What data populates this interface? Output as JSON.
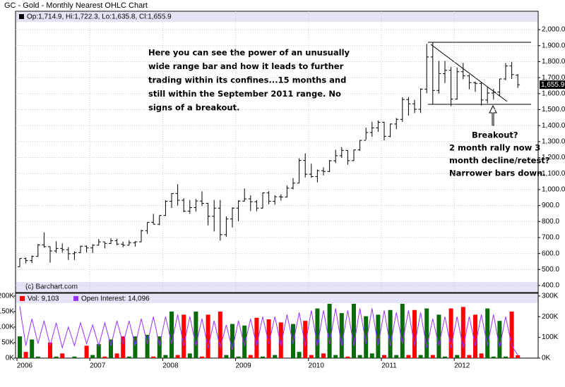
{
  "chart_data": {
    "type": "ohlc",
    "title": "GC - Gold - Monthly Nearest OHLC Chart",
    "legend": "Op:1,714.9, Hi:1,722.3, Lo:1,635.8, Cl:1,655.9",
    "last_label": "1,655.9",
    "copyright": "(c) Barchart.com",
    "annotations": [
      [
        "Here you can see the power of an unusually",
        "wide range bar and how it leads to further",
        "trading within its confines...15 months and",
        "still within the September 2011 range. No",
        "signs of a breakout."
      ],
      [
        "Breakout?",
        "2 month rally now 3",
        "month decline/retest?",
        "Narrower bars down."
      ]
    ],
    "categories": [
      "2006",
      null,
      null,
      null,
      null,
      null,
      null,
      null,
      null,
      null,
      null,
      null,
      "2007",
      null,
      null,
      null,
      null,
      null,
      null,
      null,
      null,
      null,
      null,
      null,
      "2008",
      null,
      null,
      null,
      null,
      null,
      null,
      null,
      null,
      null,
      null,
      null,
      "2009",
      null,
      null,
      null,
      null,
      null,
      null,
      null,
      null,
      null,
      null,
      null,
      "2010",
      null,
      null,
      null,
      null,
      null,
      null,
      null,
      null,
      null,
      null,
      null,
      "2011",
      null,
      null,
      null,
      null,
      null,
      null,
      null,
      null,
      null,
      null,
      null,
      "2012",
      null,
      null,
      null,
      null,
      null,
      null,
      null,
      null,
      null,
      null
    ],
    "open": [
      517,
      569,
      556,
      582,
      654,
      643,
      616,
      632,
      624,
      599,
      606,
      646,
      635,
      652,
      673,
      663,
      680,
      659,
      652,
      668,
      673,
      743,
      795,
      783,
      838,
      927,
      975,
      933,
      865,
      887,
      928,
      914,
      833,
      884,
      718,
      816,
      884,
      928,
      942,
      924,
      884,
      979,
      927,
      955,
      953,
      1009,
      1040,
      1182,
      1096,
      1081,
      1118,
      1113,
      1180,
      1212,
      1245,
      1181,
      1248,
      1308,
      1357,
      1386,
      1421,
      1333,
      1410,
      1439,
      1563,
      1536,
      1502,
      1628,
      1829,
      1620,
      1725,
      1746,
      1566,
      1737,
      1711,
      1669,
      1664,
      1560,
      1604,
      1610,
      1692,
      1773,
      1714.9
    ],
    "high": [
      571,
      575,
      588,
      660,
      732,
      645,
      677,
      663,
      640,
      614,
      649,
      650,
      658,
      691,
      673,
      696,
      693,
      674,
      683,
      677,
      749,
      795,
      848,
      839,
      933,
      977,
      1033,
      945,
      935,
      941,
      989,
      917,
      935,
      935,
      832,
      889,
      933,
      1007,
      964,
      934,
      982,
      990,
      964,
      970,
      1025,
      1072,
      1195,
      1227,
      1162,
      1125,
      1139,
      1185,
      1249,
      1265,
      1245,
      1250,
      1310,
      1388,
      1424,
      1432,
      1424,
      1413,
      1448,
      1577,
      1578,
      1561,
      1633,
      1911,
      1923,
      1804,
      1805,
      1766,
      1764,
      1792,
      1720,
      1676,
      1668,
      1640,
      1630,
      1693,
      1791,
      1798,
      1722.3
    ],
    "low": [
      517,
      538,
      540,
      580,
      637,
      543,
      604,
      606,
      560,
      560,
      602,
      606,
      603,
      650,
      632,
      660,
      652,
      640,
      650,
      643,
      671,
      723,
      784,
      777,
      835,
      885,
      900,
      858,
      849,
      862,
      897,
      776,
      738,
      681,
      705,
      763,
      802,
      925,
      866,
      865,
      881,
      908,
      905,
      931,
      950,
      1002,
      1040,
      1076,
      1074,
      1045,
      1089,
      1111,
      1166,
      1198,
      1155,
      1178,
      1242,
      1312,
      1330,
      1361,
      1308,
      1327,
      1378,
      1424,
      1462,
      1478,
      1479,
      1602,
      1535,
      1600,
      1666,
      1522,
      1562,
      1690,
      1627,
      1611,
      1526,
      1540,
      1562,
      1586,
      1684,
      1692,
      1635.8
    ],
    "close": [
      569,
      556,
      582,
      654,
      643,
      616,
      632,
      624,
      599,
      606,
      646,
      635,
      652,
      673,
      663,
      680,
      659,
      652,
      668,
      673,
      743,
      795,
      783,
      838,
      927,
      975,
      933,
      865,
      887,
      928,
      914,
      833,
      884,
      718,
      816,
      884,
      928,
      942,
      924,
      884,
      979,
      927,
      955,
      953,
      1009,
      1040,
      1182,
      1096,
      1081,
      1118,
      1113,
      1180,
      1212,
      1245,
      1181,
      1248,
      1308,
      1357,
      1386,
      1421,
      1333,
      1410,
      1439,
      1563,
      1536,
      1502,
      1628,
      1829,
      1620,
      1725,
      1746,
      1566,
      1737,
      1711,
      1669,
      1664,
      1560,
      1604,
      1610,
      1692,
      1773,
      1719,
      1655.9
    ],
    "color": "#000000",
    "ylim": [
      356,
      2115
    ],
    "yticks": [
      {
        "value": 400,
        "label": "400.0"
      },
      {
        "value": 500,
        "label": "500.0"
      },
      {
        "value": 600,
        "label": "600.0"
      },
      {
        "value": 700,
        "label": "700.0"
      },
      {
        "value": 800,
        "label": "800.0"
      },
      {
        "value": 900,
        "label": "900.0"
      },
      {
        "value": 1000,
        "label": "1,000.0"
      },
      {
        "value": 1100,
        "label": "1,100.0"
      },
      {
        "value": 1200,
        "label": "1,200.0"
      },
      {
        "value": 1300,
        "label": "1,300.0"
      },
      {
        "value": 1400,
        "label": "1,400.0"
      },
      {
        "value": 1500,
        "label": "1,500.0"
      },
      {
        "value": 1600,
        "label": "1,600.0"
      },
      {
        "value": 1700,
        "label": "1,700.0"
      },
      {
        "value": 1800,
        "label": "1,800.0"
      },
      {
        "value": 1900,
        "label": "1,900.0"
      },
      {
        "value": 2000,
        "label": "2,000.0"
      }
    ],
    "grid": true,
    "volume": {
      "type": "bar",
      "up_color": "#0a6b0a",
      "down_color": "#ff0000",
      "series": [
        {
          "name": "Vol: 9,103",
          "color": "#ff0000",
          "values": [
            70000,
            20000,
            60000,
            5000,
            0,
            50000,
            5000,
            15000,
            0,
            5000,
            0,
            40000,
            10000,
            45000,
            5000,
            60000,
            15000,
            70000,
            5000,
            70000,
            0,
            75000,
            5000,
            70000,
            10000,
            150000,
            10000,
            140000,
            15000,
            150000,
            5000,
            140000,
            0,
            150000,
            10000,
            110000,
            5000,
            105000,
            10000,
            130000,
            5000,
            125000,
            10000,
            115000,
            0,
            110000,
            20000,
            120000,
            10000,
            160000,
            15000,
            175000,
            10000,
            145000,
            5000,
            175000,
            10000,
            135000,
            15000,
            140000,
            10000,
            155000,
            10000,
            175000,
            10000,
            155000,
            10000,
            160000,
            10000,
            140000,
            5000,
            160000,
            10000,
            165000,
            10000,
            140000,
            15000,
            160000,
            5000,
            120000,
            5000,
            150000,
            9103
          ]
        },
        {
          "name": "Open Interest: 14,096",
          "color": "#9933ff",
          "axis": "y2",
          "values": [
            250000,
            60000,
            190000,
            70000,
            180000,
            60000,
            170000,
            50000,
            150000,
            60000,
            170000,
            70000,
            160000,
            60000,
            170000,
            60000,
            180000,
            70000,
            180000,
            60000,
            190000,
            70000,
            200000,
            60000,
            200000,
            70000,
            210000,
            60000,
            200000,
            60000,
            190000,
            50000,
            180000,
            50000,
            160000,
            40000,
            180000,
            60000,
            190000,
            60000,
            200000,
            70000,
            200000,
            60000,
            210000,
            70000,
            220000,
            60000,
            230000,
            60000,
            230000,
            70000,
            240000,
            60000,
            230000,
            60000,
            240000,
            70000,
            240000,
            60000,
            230000,
            60000,
            220000,
            70000,
            230000,
            60000,
            220000,
            50000,
            190000,
            60000,
            200000,
            50000,
            200000,
            50000,
            200000,
            60000,
            210000,
            60000,
            210000,
            50000,
            200000,
            60000,
            14096
          ]
        }
      ],
      "ylim": [
        0,
        209000
      ],
      "yticks": [
        {
          "value": 0,
          "label": "0K"
        },
        {
          "value": 50000,
          "label": "50K"
        },
        {
          "value": 100000,
          "label": "100K"
        },
        {
          "value": 150000,
          "label": "150K"
        },
        {
          "value": 200000,
          "label": "200K"
        }
      ],
      "y2lim": [
        0,
        313000
      ],
      "y2ticks": [
        {
          "value": 0,
          "label": "0K"
        },
        {
          "value": 100000,
          "label": "100K"
        },
        {
          "value": 200000,
          "label": "200K"
        },
        {
          "value": 300000,
          "label": "300K"
        }
      ]
    }
  }
}
